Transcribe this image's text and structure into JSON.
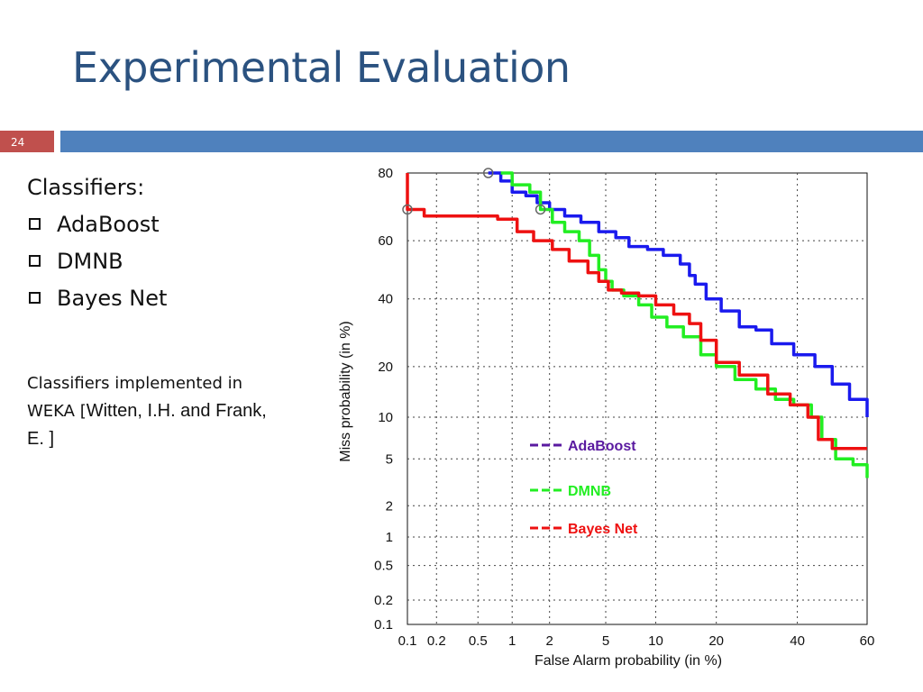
{
  "slide": {
    "title": "Experimental Evaluation",
    "number": "24",
    "heading": "Classifiers:",
    "bullets": [
      "AdaBoost",
      "DMNB",
      "Bayes Net"
    ],
    "note_part1": "Classifiers implemented in WEKA [",
    "note_part2": "Witten, I.H. and Frank, E. ]",
    "accent_color": "#4f81bd",
    "number_color": "#c0504d",
    "title_color": "#2b5280"
  },
  "chart_data": {
    "type": "line",
    "xlabel": "False Alarm probability (in %)",
    "ylabel": "Miss probability (in %)",
    "x_scale": "probit",
    "y_scale": "probit",
    "xlim": [
      0.1,
      60
    ],
    "ylim": [
      0.1,
      80
    ],
    "x_ticks": [
      0.1,
      0.2,
      0.5,
      1,
      2,
      5,
      10,
      20,
      40,
      60
    ],
    "x_tick_labels": [
      "0.1",
      "0.2",
      "0.5",
      "1",
      "2",
      "5",
      "10",
      "20",
      "40",
      "60"
    ],
    "y_ticks": [
      0.1,
      0.2,
      0.5,
      1,
      2,
      5,
      10,
      20,
      40,
      60,
      80
    ],
    "y_tick_labels": [
      "0.1",
      "0.2",
      "0.5",
      "1",
      "2",
      "5",
      "10",
      "20",
      "40",
      "60",
      "80"
    ],
    "grid": true,
    "legend_position": "lower-center",
    "series": [
      {
        "name": "AdaBoost",
        "color": "#1a1aee",
        "legend_color": "#5a1aa0",
        "points": [
          [
            0.62,
            80
          ],
          [
            0.8,
            78
          ],
          [
            1.0,
            75
          ],
          [
            1.3,
            74
          ],
          [
            1.6,
            72
          ],
          [
            2.0,
            70
          ],
          [
            2.6,
            68
          ],
          [
            3.4,
            66
          ],
          [
            4.5,
            63
          ],
          [
            5.8,
            61
          ],
          [
            7.0,
            58
          ],
          [
            9.0,
            57
          ],
          [
            11.0,
            55
          ],
          [
            13.5,
            52
          ],
          [
            15.0,
            48
          ],
          [
            16.0,
            45
          ],
          [
            18.0,
            40
          ],
          [
            21.0,
            36
          ],
          [
            25.0,
            31
          ],
          [
            29.0,
            30
          ],
          [
            33.0,
            26
          ],
          [
            39.0,
            23
          ],
          [
            45.0,
            20
          ],
          [
            50.0,
            16
          ],
          [
            55.0,
            13
          ],
          [
            60.0,
            10
          ]
        ],
        "markers": [
          [
            0.62,
            80
          ]
        ]
      },
      {
        "name": "DMNB",
        "color": "#22ee22",
        "legend_color": "#22ee22",
        "points": [
          [
            0.8,
            80
          ],
          [
            1.0,
            77
          ],
          [
            1.4,
            75
          ],
          [
            1.7,
            70
          ],
          [
            2.1,
            66
          ],
          [
            2.6,
            63
          ],
          [
            3.3,
            60
          ],
          [
            3.9,
            55
          ],
          [
            4.5,
            50
          ],
          [
            5.0,
            46
          ],
          [
            5.5,
            43
          ],
          [
            6.5,
            41
          ],
          [
            8.0,
            38
          ],
          [
            9.5,
            34
          ],
          [
            11.5,
            31
          ],
          [
            14.0,
            28
          ],
          [
            17.0,
            23
          ],
          [
            20.0,
            20
          ],
          [
            24.0,
            17
          ],
          [
            29.0,
            15
          ],
          [
            34.0,
            13
          ],
          [
            39.0,
            12
          ],
          [
            44.0,
            10
          ],
          [
            47.0,
            7
          ],
          [
            51.0,
            5
          ],
          [
            56.0,
            4.5
          ],
          [
            60.0,
            3.5
          ]
        ],
        "markers": [
          [
            1.7,
            70
          ]
        ]
      },
      {
        "name": "Bayes Net",
        "color": "#ee1111",
        "legend_color": "#ee1111",
        "points": [
          [
            0.1,
            80
          ],
          [
            0.1,
            70
          ],
          [
            0.15,
            68
          ],
          [
            0.3,
            68
          ],
          [
            0.75,
            67
          ],
          [
            1.1,
            63
          ],
          [
            1.5,
            60
          ],
          [
            2.1,
            57
          ],
          [
            2.8,
            53
          ],
          [
            3.8,
            49
          ],
          [
            4.5,
            46
          ],
          [
            5.2,
            43
          ],
          [
            6.3,
            42
          ],
          [
            8.0,
            41
          ],
          [
            10.0,
            38
          ],
          [
            12.5,
            35
          ],
          [
            15.0,
            32
          ],
          [
            17.0,
            27
          ],
          [
            20.0,
            21
          ],
          [
            25.0,
            18
          ],
          [
            32.0,
            14
          ],
          [
            38.0,
            12
          ],
          [
            43.0,
            10
          ],
          [
            46.0,
            7
          ],
          [
            50.0,
            6
          ],
          [
            60.0,
            6
          ]
        ],
        "markers": [
          [
            0.1,
            70
          ]
        ]
      }
    ]
  }
}
